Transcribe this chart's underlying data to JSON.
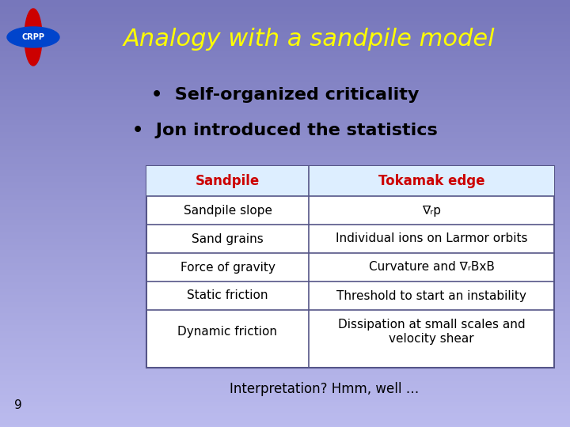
{
  "title": "Analogy with a sandpile model",
  "title_color": "#FFFF00",
  "bg_color_top": "#7777BB",
  "bg_color_bottom": "#BBBBEE",
  "bullet1": "Self-organized criticality",
  "bullet2": "Jon introduced the statistics",
  "bullet_color": "#000000",
  "table_header_color": "#CC0000",
  "table_header_bg": "#DDEEFF",
  "table_body_bg": "#EEEEFF",
  "table_border_color": "#555588",
  "table_rows": [
    [
      "Sandpile",
      "Tokamak edge"
    ],
    [
      "Sandpile slope",
      "∇ᵣp"
    ],
    [
      "Sand grains",
      "Individual ions on Larmor orbits"
    ],
    [
      "Force of gravity",
      "Curvature and ∇ᵣBxB"
    ],
    [
      "Static friction",
      "Threshold to start an instability"
    ],
    [
      "Dynamic friction",
      "Dissipation at small scales and\nvelocity shear"
    ]
  ],
  "footer": "Interpretation? Hmm, well …",
  "page_number": "9",
  "crpp_text": "CRPP",
  "crpp_ellipse_color": "#0044CC",
  "crpp_cross_color": "#CC0000"
}
